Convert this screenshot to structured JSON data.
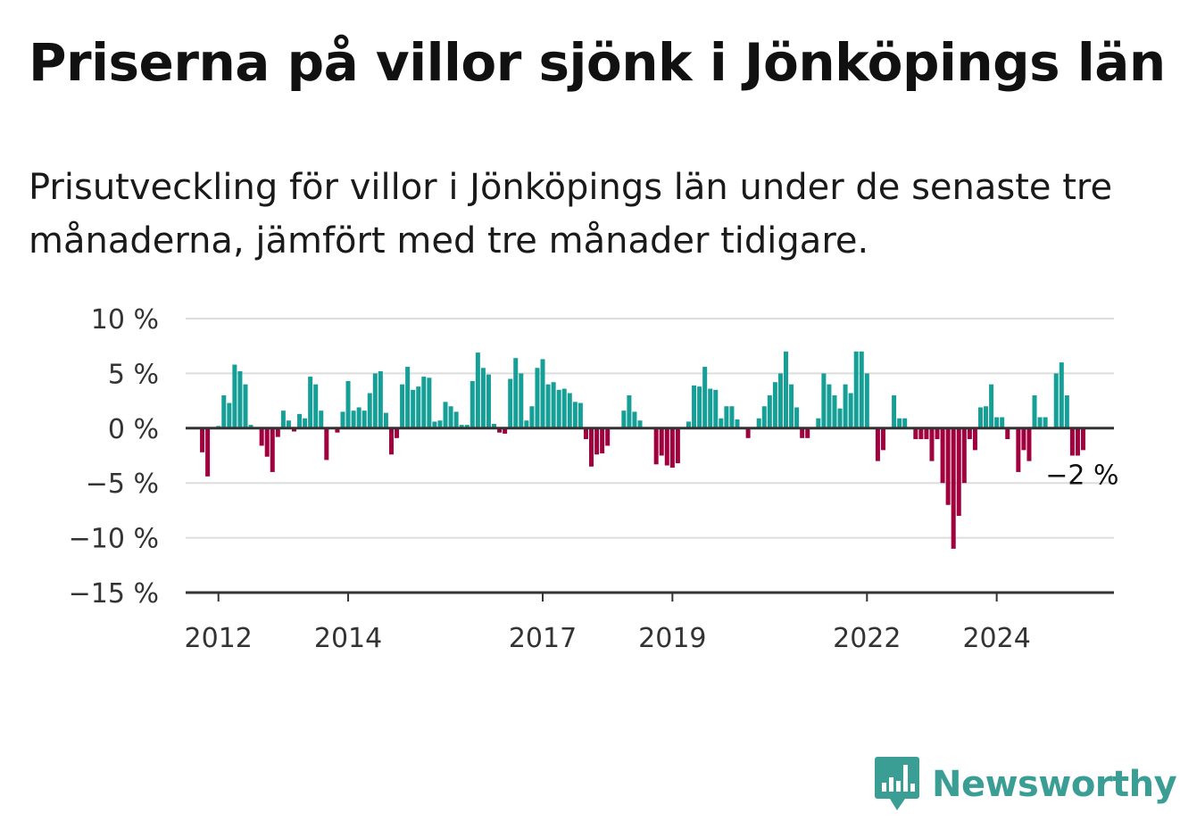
{
  "header": {
    "title": "Priserna på villor sjönk i Jönköpings län",
    "subtitle": "Prisutveckling för villor i Jönköpings län under de senaste tre månaderna, jämfört med tre månader tidigare."
  },
  "brand": {
    "name": "Newsworthy",
    "icon": "bar-chart-speech-bubble-icon",
    "color": "#3a9e95"
  },
  "colors": {
    "positive": "#159f97",
    "negative": "#a0003e",
    "zero_line": "#333333",
    "grid": "#dddddd",
    "axis": "#333333"
  },
  "chart_data": {
    "type": "bar",
    "x_start": "2011-09",
    "frequency": "monthly",
    "ylim": [
      -15,
      10
    ],
    "yticks": [
      10,
      5,
      0,
      -5,
      -10,
      -15
    ],
    "ytick_labels": [
      "10 %",
      "5 %",
      "0 %",
      "−5 %",
      "−10 %",
      "−15 %"
    ],
    "xticks": [
      {
        "date": "2012-01",
        "label": "2012"
      },
      {
        "date": "2014-01",
        "label": "2014"
      },
      {
        "date": "2017-01",
        "label": "2017"
      },
      {
        "date": "2019-01",
        "label": "2019"
      },
      {
        "date": "2022-01",
        "label": "2022"
      },
      {
        "date": "2024-01",
        "label": "2024"
      }
    ],
    "values": [
      0,
      -2.2,
      -4.4,
      0,
      0.2,
      3,
      2.3,
      5.8,
      5.2,
      4,
      0.3,
      0,
      -1.6,
      -2.6,
      -4,
      -0.8,
      1.6,
      0.7,
      -0.3,
      1.3,
      0.9,
      4.7,
      4,
      1.6,
      -2.9,
      0,
      -0.4,
      1.5,
      4.3,
      1.6,
      1.9,
      1.6,
      3.2,
      5,
      5.2,
      1.4,
      -2.4,
      -0.9,
      4,
      5.6,
      3.5,
      3.8,
      4.7,
      4.6,
      0.6,
      0.7,
      2.4,
      2,
      1.5,
      0.3,
      0.3,
      4.3,
      6.9,
      5.5,
      4.9,
      0.4,
      -0.4,
      -0.5,
      4.5,
      6.4,
      5,
      0.7,
      2,
      5.5,
      6.3,
      4,
      4.2,
      3.5,
      3.6,
      3.2,
      2.4,
      2.3,
      -1,
      -3.5,
      -2.4,
      -2.3,
      -1.6,
      0,
      0,
      1.6,
      3,
      1.5,
      0.7,
      0,
      0,
      -3.3,
      -2.5,
      -3.4,
      -3.6,
      -3.2,
      0,
      0.6,
      3.9,
      3.8,
      5.6,
      3.6,
      3.5,
      0.9,
      2,
      2,
      0.8,
      0,
      -0.9,
      0,
      0.9,
      2,
      3,
      4.2,
      5,
      7,
      4,
      1.9,
      -0.9,
      -0.9,
      0,
      0.9,
      5,
      4,
      3,
      1.8,
      4,
      3.2,
      7,
      7,
      5,
      0,
      -3,
      -2,
      0,
      3,
      0.9,
      0.9,
      0,
      -1,
      -1,
      -1,
      -3,
      -1,
      -5,
      -7,
      -11,
      -8,
      -5,
      -1,
      -2,
      1.9,
      2,
      4,
      1,
      1,
      -1,
      0,
      -4,
      -2,
      -3,
      3,
      1,
      1,
      0,
      5,
      6,
      3,
      -2.5,
      -2.5,
      -2
    ],
    "end_label": "−2 %"
  }
}
